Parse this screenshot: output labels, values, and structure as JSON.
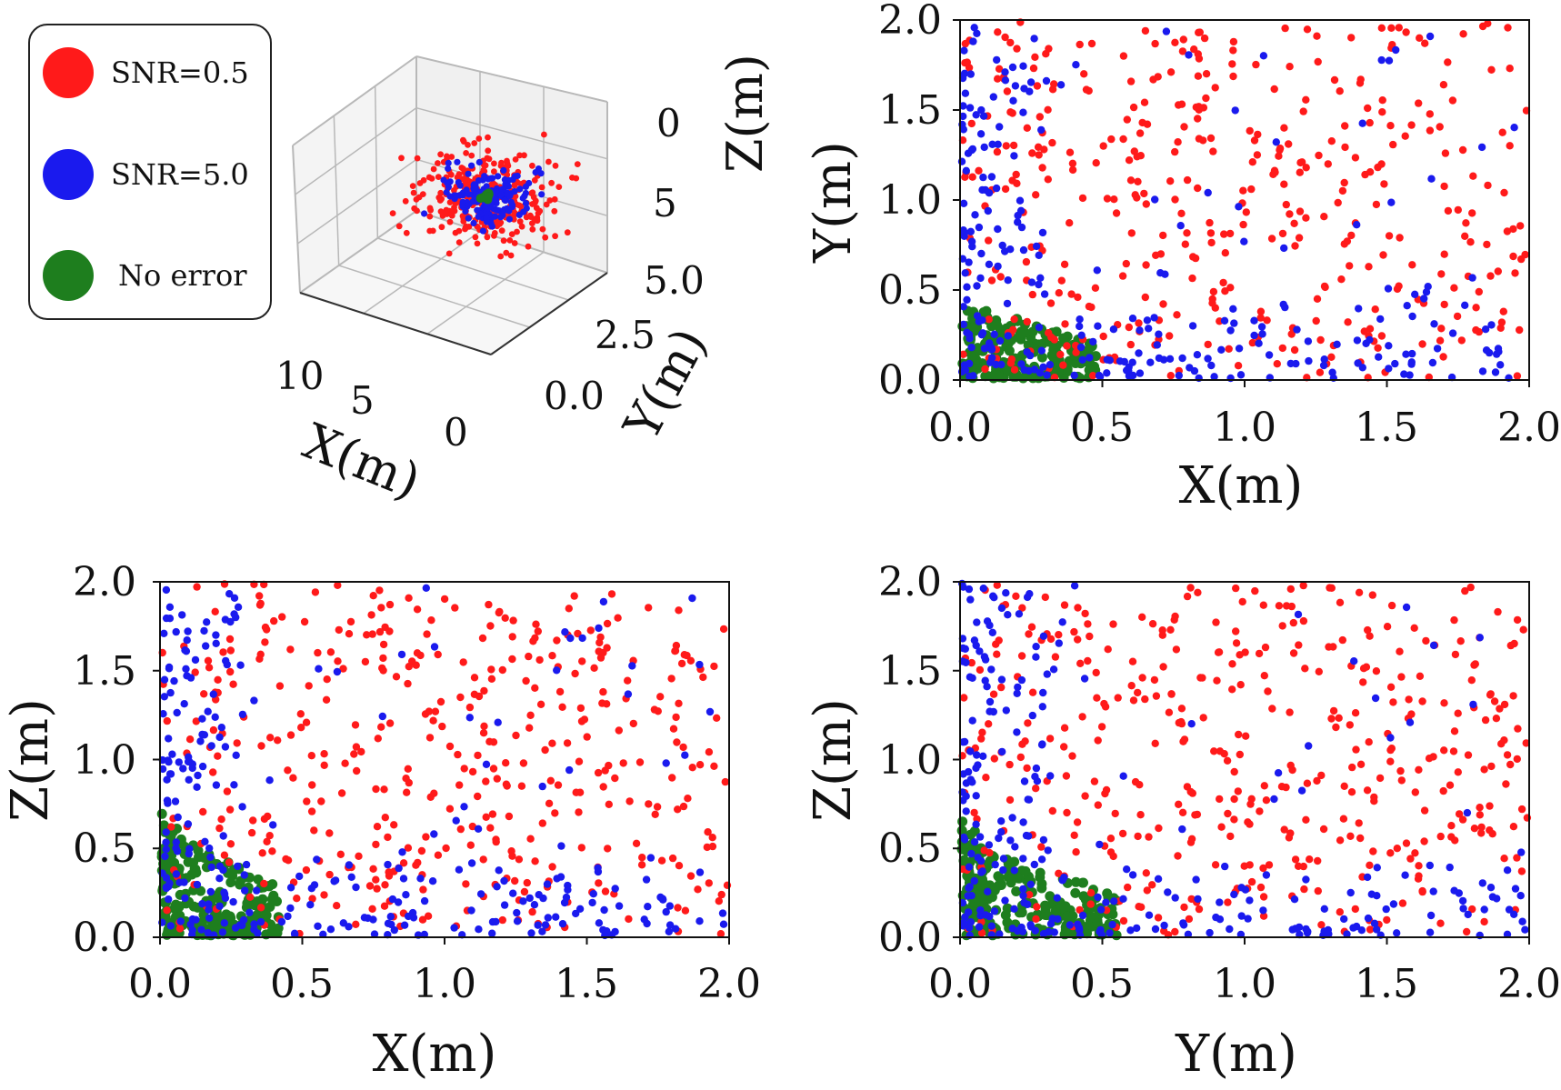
{
  "colors": {
    "snr_low": "#ff1a1a",
    "snr_high": "#1a1aee",
    "no_error": "#1e7e1e"
  },
  "legend": {
    "entries": [
      {
        "label": "SNR=0.5",
        "color": "#ff1a1a"
      },
      {
        "label": "SNR=5.0",
        "color": "#1a1aee"
      },
      {
        "label": "No error",
        "color": "#1e7e1e"
      }
    ]
  },
  "chart_data": [
    {
      "id": "scatter3d",
      "type": "scatter",
      "title": "",
      "xlabel": "X(m)",
      "ylabel": "Y(m)",
      "zlabel": "Z(m)",
      "x_ticks": [
        "10",
        "5",
        "0"
      ],
      "y_ticks": [
        "0.0",
        "2.5",
        "5.0"
      ],
      "z_ticks": [
        "0",
        "5"
      ],
      "series": [
        {
          "name": "SNR=0.5",
          "n_points": 320
        },
        {
          "name": "SNR=5.0",
          "n_points": 180
        },
        {
          "name": "No error",
          "n_points": 10
        }
      ]
    },
    {
      "id": "xy",
      "type": "scatter",
      "xlabel": "X(m)",
      "ylabel": "Y(m)",
      "xlim": [
        0,
        2
      ],
      "ylim": [
        0,
        2
      ],
      "xticks": [
        "0.0",
        "0.5",
        "1.0",
        "1.5",
        "2.0"
      ],
      "yticks": [
        "0.0",
        "0.5",
        "1.0",
        "1.5",
        "2.0"
      ],
      "series": [
        {
          "name": "SNR=0.5",
          "seed": 11,
          "n_points": 420,
          "distribution": "uniform over full range, sparse"
        },
        {
          "name": "SNR=5.0",
          "seed": 12,
          "n_points": 330,
          "distribution": "concentrated near X=0 and near Y=0"
        },
        {
          "name": "No error",
          "seed": 13,
          "n_points": 260,
          "distribution": "cluster at X 0–0.5, Y 0–0.5"
        }
      ]
    },
    {
      "id": "xz",
      "type": "scatter",
      "xlabel": "X(m)",
      "ylabel": "Z(m)",
      "xlim": [
        0,
        2
      ],
      "ylim": [
        0,
        2
      ],
      "xticks": [
        "0.0",
        "0.5",
        "1.0",
        "1.5",
        "2.0"
      ],
      "yticks": [
        "0.0",
        "0.5",
        "1.0",
        "1.5",
        "2.0"
      ],
      "series": [
        {
          "name": "SNR=0.5",
          "seed": 21,
          "n_points": 420,
          "distribution": "uniform over full range, sparse"
        },
        {
          "name": "SNR=5.0",
          "seed": 22,
          "n_points": 340,
          "distribution": "concentrated near X=0 and near Z=0"
        },
        {
          "name": "No error",
          "seed": 23,
          "n_points": 260,
          "distribution": "cluster at X 0–0.45, Z 0–0.7"
        }
      ]
    },
    {
      "id": "yz",
      "type": "scatter",
      "xlabel": "Y(m)",
      "ylabel": "Z(m)",
      "xlim": [
        0,
        2
      ],
      "ylim": [
        0,
        2
      ],
      "xticks": [
        "0.0",
        "0.5",
        "1.0",
        "1.5",
        "2.0"
      ],
      "yticks": [
        "0.0",
        "0.5",
        "1.0",
        "1.5",
        "2.0"
      ],
      "series": [
        {
          "name": "SNR=0.5",
          "seed": 31,
          "n_points": 420,
          "distribution": "uniform over full range, sparse"
        },
        {
          "name": "SNR=5.0",
          "seed": 32,
          "n_points": 330,
          "distribution": "concentrated near Y=0 and near Z=0"
        },
        {
          "name": "No error",
          "seed": 33,
          "n_points": 260,
          "distribution": "cluster at Y 0–0.55, Z 0–0.6"
        }
      ]
    }
  ]
}
